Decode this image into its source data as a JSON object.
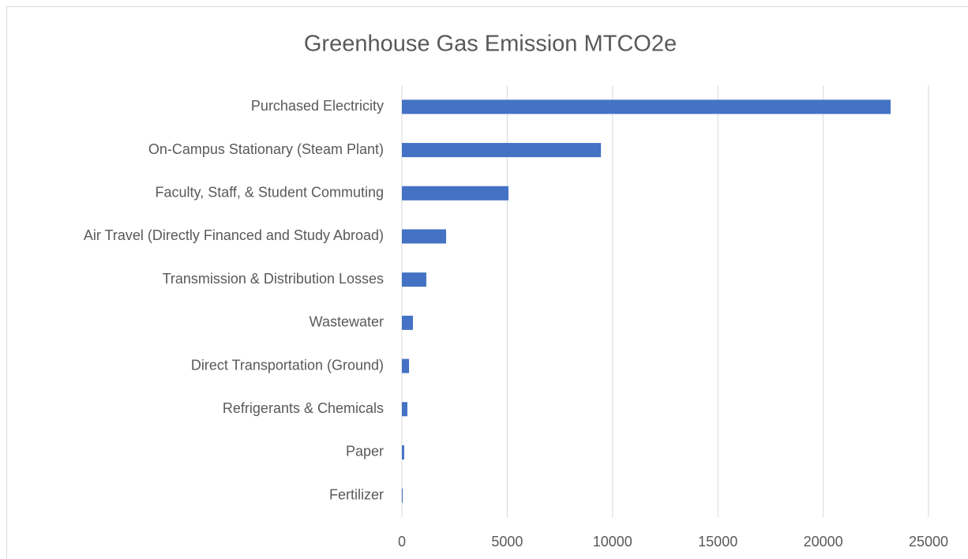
{
  "chart_data": {
    "type": "bar",
    "orientation": "horizontal",
    "title": "Greenhouse Gas Emission MTCO2e",
    "categories": [
      "Purchased Electricity",
      "On-Campus Stationary (Steam Plant)",
      "Faculty, Staff, & Student Commuting",
      "Air Travel (Directly Financed and Study Abroad)",
      "Transmission & Distribution Losses",
      "Wastewater",
      "Direct Transportation (Ground)",
      "Refrigerants & Chemicals",
      "Paper",
      "Fertilizer"
    ],
    "values": [
      23200,
      9450,
      5060,
      2100,
      1160,
      525,
      340,
      260,
      110,
      40
    ],
    "color": "#4472c4",
    "xlim": [
      0,
      25000
    ],
    "xticks": [
      0,
      5000,
      10000,
      15000,
      20000,
      25000
    ],
    "grid": true
  }
}
